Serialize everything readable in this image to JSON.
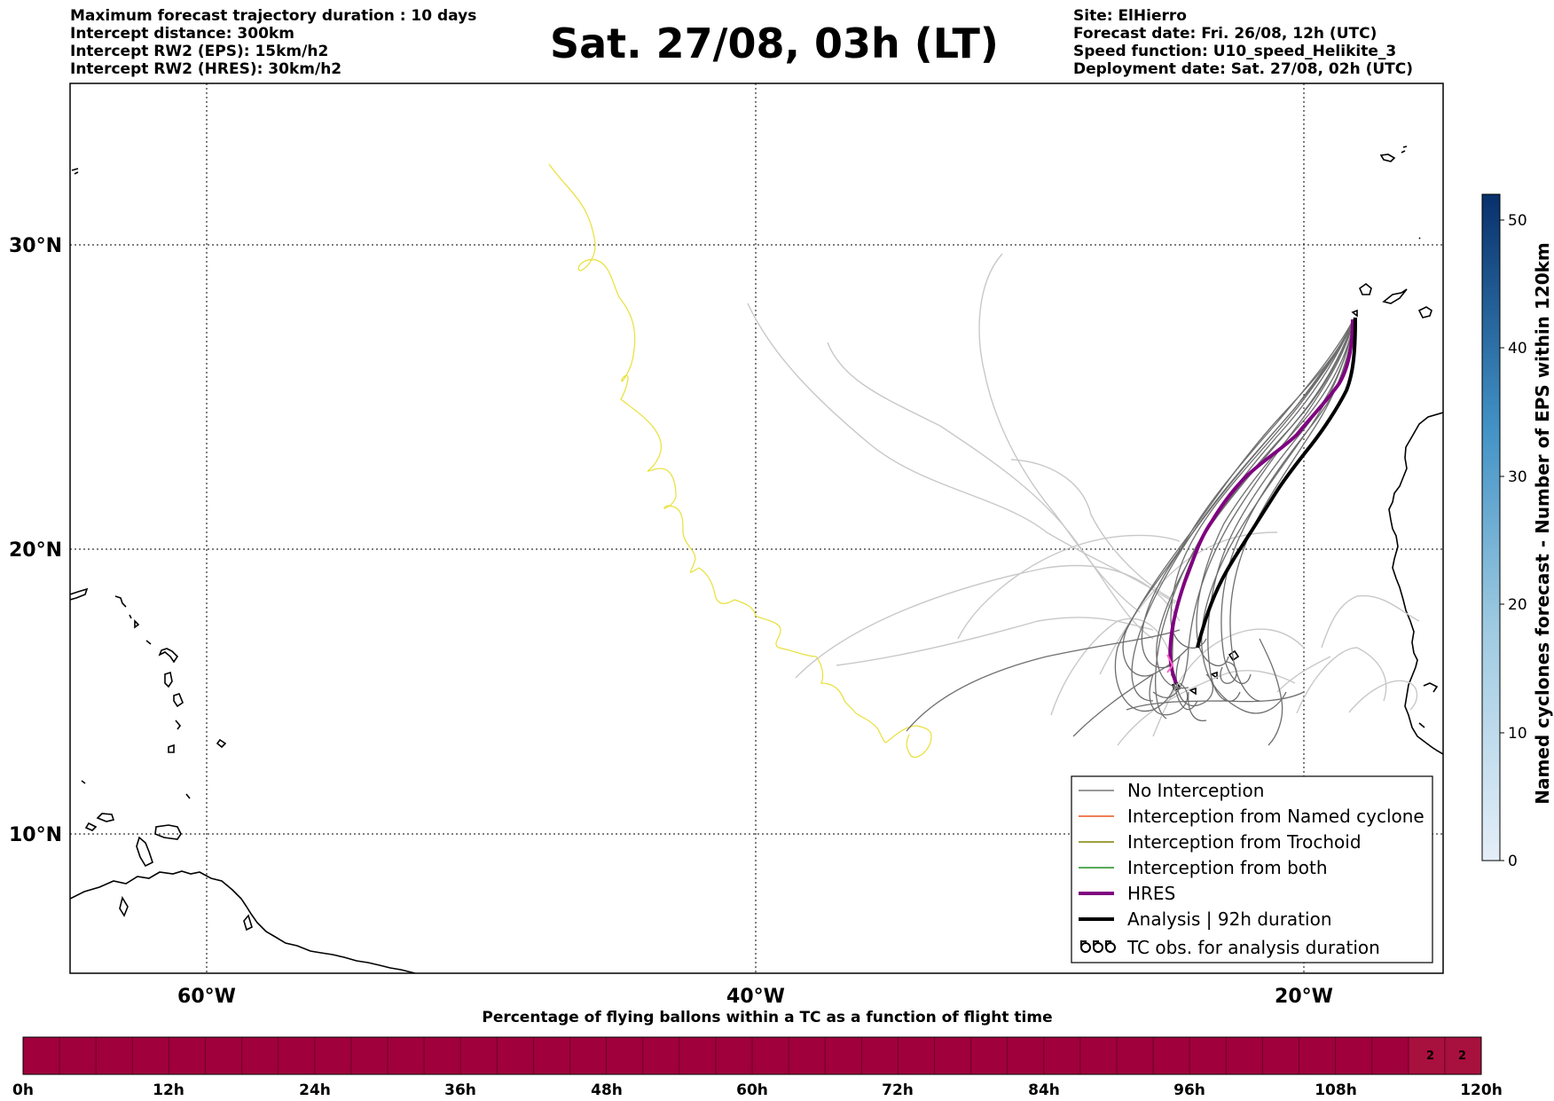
{
  "header": {
    "left_lines": [
      "Maximum forecast trajectory duration : 10 days",
      "Intercept distance: 300km",
      "Intercept RW2 (EPS):  15km/h2",
      "Intercept RW2 (HRES): 30km/h2"
    ],
    "title": "Sat. 27/08, 03h (LT)",
    "right_lines": [
      "Site: ElHierro",
      "Forecast date: Fri. 26/08, 12h (UTC)",
      "Speed function: U10_speed_Helikite_3",
      "Deployment date: Sat. 27/08, 02h (UTC)"
    ]
  },
  "map": {
    "lat_labels": [
      "30°N",
      "20°N",
      "10°N"
    ],
    "lon_labels": [
      "60°W",
      "40°W",
      "20°W"
    ]
  },
  "legend": {
    "items": [
      {
        "label": "No Interception",
        "color": "#777777"
      },
      {
        "label": "Interception from Named cyclone",
        "color": "#e8551e"
      },
      {
        "label": "Interception from Trochoid",
        "color": "#808000"
      },
      {
        "label": "Interception from both",
        "color": "#228b22"
      },
      {
        "label": "HRES",
        "color": "#800080"
      },
      {
        "label": "Analysis | 92h duration",
        "color": "#000000"
      },
      {
        "label": "TC obs. for analysis duration",
        "color": "#000000",
        "icon": "cyclone-symbols-icon"
      }
    ]
  },
  "colorbar": {
    "label": "Named cyclones forecast - Number of EPS within 120km",
    "ticks": [
      "0",
      "10",
      "20",
      "30",
      "40",
      "50"
    ],
    "min": 0,
    "max": 52,
    "colors": {
      "low": "#e4eef8",
      "high": "#08306b"
    }
  },
  "time_bar": {
    "title": "Percentage of flying ballons within a TC as a function of flight time",
    "ticks": [
      "0h",
      "12h",
      "24h",
      "36h",
      "48h",
      "60h",
      "72h",
      "84h",
      "96h",
      "108h",
      "120h"
    ],
    "base_color": "#a0003c",
    "highlight_color": "#a8103e",
    "cell_values": [
      "2",
      "2"
    ]
  }
}
